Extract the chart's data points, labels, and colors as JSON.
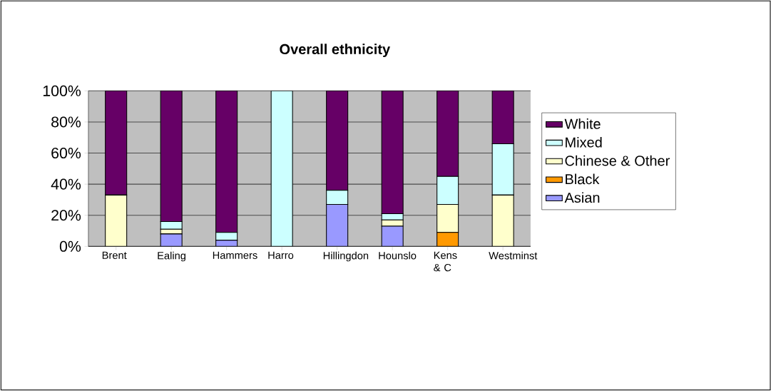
{
  "chart_data": {
    "type": "bar",
    "stacked": true,
    "title": "Overall ethnicity",
    "categories": [
      "Brent",
      "Ealing",
      "Hammers",
      "Harro",
      "Hillingdon",
      "Hounslo",
      "Kens & C",
      "Westminst"
    ],
    "series": [
      {
        "name": "Asian",
        "color": "#9999ff",
        "values": [
          0,
          8,
          4,
          0,
          27,
          13,
          0,
          0
        ]
      },
      {
        "name": "Black",
        "color": "#ff9900",
        "values": [
          0,
          0,
          0,
          0,
          0,
          0,
          9,
          0
        ]
      },
      {
        "name": "Chinese & Other",
        "color": "#ffffcc",
        "values": [
          33,
          3,
          0,
          0,
          0,
          4,
          18,
          33
        ]
      },
      {
        "name": "Mixed",
        "color": "#ccffff",
        "values": [
          0,
          5,
          5,
          100,
          9,
          4,
          18,
          33
        ]
      },
      {
        "name": "White",
        "color": "#660066",
        "values": [
          67,
          84,
          91,
          0,
          64,
          79,
          55,
          34
        ]
      }
    ],
    "ylim": [
      0,
      100
    ],
    "yticks": [
      {
        "value": 0,
        "label": "0%"
      },
      {
        "value": 20,
        "label": "20%"
      },
      {
        "value": 40,
        "label": "40%"
      },
      {
        "value": 60,
        "label": "60%"
      },
      {
        "value": 80,
        "label": "80%"
      },
      {
        "value": 100,
        "label": "100%"
      }
    ],
    "grid": "y",
    "legend": "right"
  }
}
